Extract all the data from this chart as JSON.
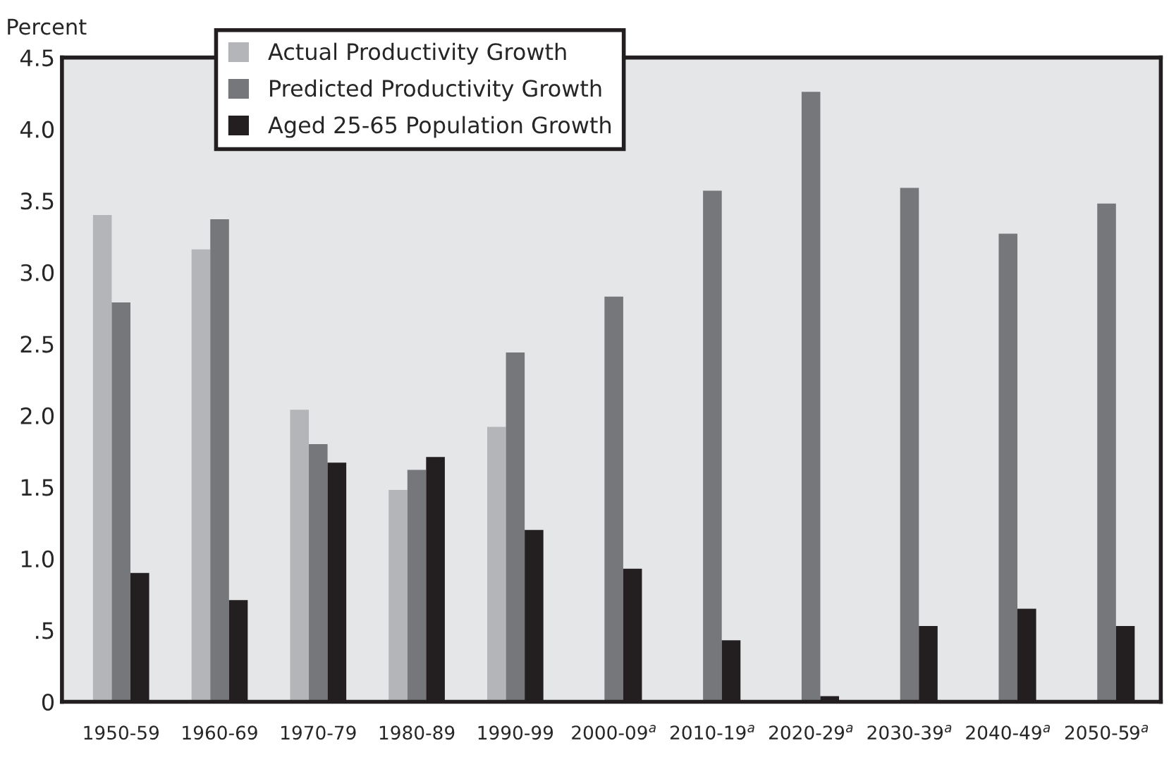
{
  "chart_data": {
    "type": "bar",
    "ylabel": "Percent",
    "categories": [
      "1950-59",
      "1960-69",
      "1970-79",
      "1980-89",
      "1990-99",
      "2000-09$^{a}$",
      "2010-19$^{a}$",
      "2020-29$^{a}$",
      "2030-39$^{a}$",
      "2040-49$^{a}$",
      "2050-59$^{a}$"
    ],
    "series": [
      {
        "name": "Actual Productivity Growth",
        "color": "#b4b5b8",
        "values": [
          3.4,
          3.16,
          2.04,
          1.48,
          1.92,
          null,
          null,
          null,
          null,
          null,
          null
        ]
      },
      {
        "name": "Predicted Productivity Growth",
        "color": "#76777b",
        "values": [
          2.79,
          3.37,
          1.8,
          1.62,
          2.44,
          2.83,
          3.57,
          4.26,
          3.59,
          3.27,
          3.48
        ]
      },
      {
        "name": "Aged 25-65 Population Growth",
        "color": "#231f20",
        "values": [
          0.9,
          0.71,
          1.67,
          1.71,
          1.2,
          0.93,
          0.43,
          0.04,
          0.53,
          0.65,
          0.53
        ]
      }
    ],
    "ylim": [
      0,
      4.5
    ],
    "yticks": [
      0,
      {
        "value": 0.5,
        "label": ".5"
      },
      {
        "value": 1.0,
        "label": "1.0"
      },
      1.5,
      {
        "value": 2.0,
        "label": "2.0"
      },
      2.5,
      {
        "value": 3.0,
        "label": "3.0"
      },
      3.5,
      {
        "value": 4.0,
        "label": "4.0"
      },
      4.5
    ],
    "grid": false,
    "legend": "top left"
  }
}
